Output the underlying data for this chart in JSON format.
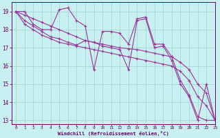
{
  "background_color": "#c8f0f0",
  "grid_color": "#a8dada",
  "line_color": "#993399",
  "xlabel": "Windchill (Refroidissement éolien,°C)",
  "xlabel_color": "#660066",
  "tick_color": "#660066",
  "xlim": [
    -0.5,
    23
  ],
  "ylim": [
    12.8,
    19.5
  ],
  "yticks": [
    13,
    14,
    15,
    16,
    17,
    18,
    19
  ],
  "xticks": [
    0,
    1,
    2,
    3,
    4,
    5,
    6,
    7,
    8,
    9,
    10,
    11,
    12,
    13,
    14,
    15,
    16,
    17,
    18,
    19,
    20,
    21,
    22,
    23
  ],
  "series": [
    [
      19.0,
      19.0,
      18.3,
      18.0,
      18.0,
      19.1,
      19.2,
      18.5,
      18.2,
      15.8,
      17.9,
      17.9,
      17.8,
      17.2,
      18.6,
      18.7,
      17.2,
      17.2,
      16.5,
      15.2,
      14.4,
      13.2,
      13.0,
      13.0
    ],
    [
      19.0,
      18.3,
      18.0,
      17.7,
      17.5,
      17.3,
      17.2,
      17.1,
      17.0,
      16.9,
      16.8,
      16.7,
      16.6,
      16.5,
      16.4,
      16.3,
      16.2,
      16.1,
      16.0,
      15.7,
      15.2,
      14.3,
      13.8,
      13.0
    ],
    [
      19.0,
      18.8,
      18.6,
      18.4,
      18.2,
      18.0,
      17.8,
      17.6,
      17.4,
      17.3,
      17.2,
      17.1,
      17.0,
      16.95,
      16.9,
      16.8,
      16.7,
      16.6,
      16.5,
      16.2,
      15.8,
      15.0,
      14.5,
      13.0
    ],
    [
      19.0,
      18.5,
      18.2,
      17.9,
      17.6,
      17.5,
      17.3,
      17.15,
      17.4,
      17.3,
      17.1,
      17.0,
      16.9,
      15.8,
      18.5,
      18.6,
      17.0,
      17.1,
      16.3,
      15.0,
      14.3,
      13.0,
      15.0,
      13.0
    ]
  ]
}
